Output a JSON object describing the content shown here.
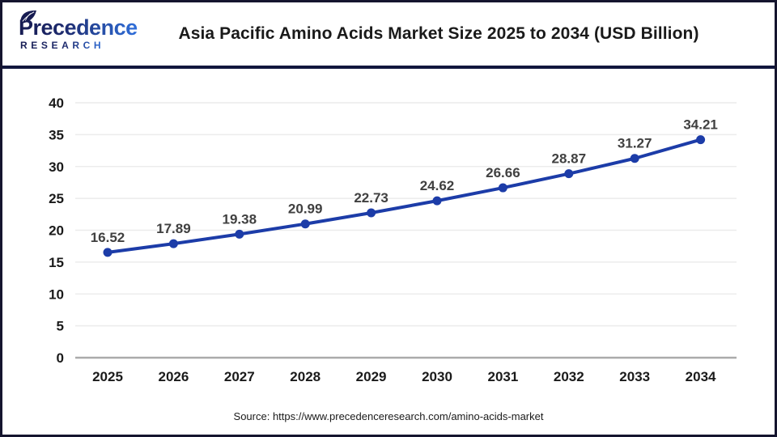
{
  "header": {
    "logo": {
      "brand": "Precedence",
      "subtitle": "RESEARCH"
    },
    "title": "Asia Pacific Amino Acids Market Size 2025 to 2034 (USD Billion)"
  },
  "footer": {
    "source": "Source: https://www.precedenceresearch.com/amino-acids-market"
  },
  "chart_data": {
    "type": "line",
    "title": "Asia Pacific Amino Acids Market Size 2025 to 2034 (USD Billion)",
    "categories": [
      "2025",
      "2026",
      "2027",
      "2028",
      "2029",
      "2030",
      "2031",
      "2032",
      "2033",
      "2034"
    ],
    "series": [
      {
        "name": "Asia Pacific Amino Acids Market Size (USD Billion)",
        "values": [
          16.52,
          17.89,
          19.38,
          20.99,
          22.73,
          24.62,
          26.66,
          28.87,
          31.27,
          34.21
        ]
      }
    ],
    "xlabel": "",
    "ylabel": "",
    "ylim": [
      0,
      40
    ],
    "ytick_step": 5,
    "grid": true,
    "legend_position": "none",
    "data_labels": true,
    "colors": {
      "line": "#1c3ca8",
      "marker": "#1c3ca8",
      "data_label": "#404040",
      "axis_label": "#1a1a1a",
      "gridline": "#ececec",
      "baseline": "#ababab",
      "header_rule": "#11173d",
      "logo_navy": "#171c52",
      "logo_blue": "#2f6fdb"
    }
  }
}
